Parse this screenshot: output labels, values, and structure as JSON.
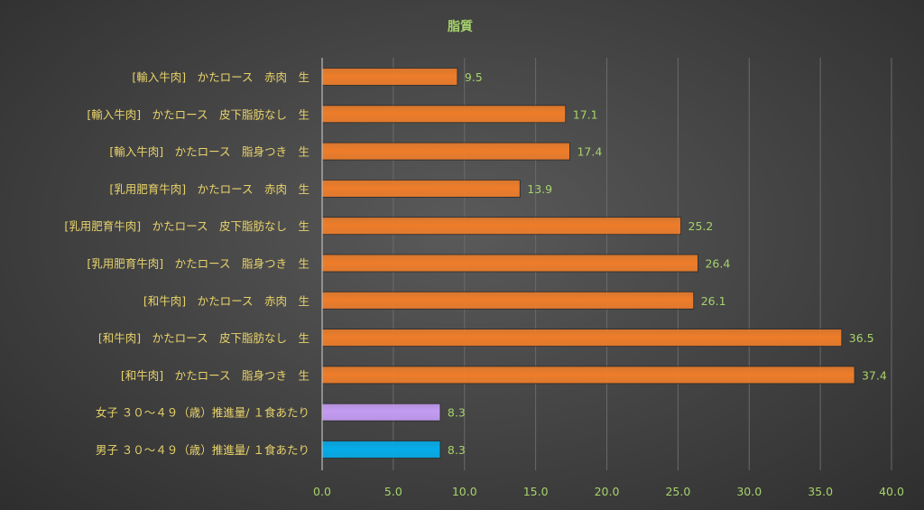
{
  "chart_data": {
    "type": "bar",
    "orientation": "horizontal",
    "title": "脂質",
    "xlabel": "",
    "ylabel": "",
    "xlim": [
      0,
      40
    ],
    "x_ticks": [
      "0.0",
      "5.0",
      "10.0",
      "15.0",
      "20.0",
      "25.0",
      "30.0",
      "35.0",
      "40.0"
    ],
    "grid": true,
    "legend": "none",
    "categories": [
      "[輸入牛肉]　かたロース　赤肉　生",
      "[輸入牛肉]　かたロース　皮下脂肪なし　生",
      "[輸入牛肉]　かたロース　脂身つき　生",
      "[乳用肥育牛肉]　かたロース　赤肉　生",
      "[乳用肥育牛肉]　かたロース　皮下脂肪なし　生",
      "[乳用肥育牛肉]　かたロース　脂身つき　生",
      "[和牛肉]　かたロース　赤肉　生",
      "[和牛肉]　かたロース　皮下脂肪なし　生",
      "[和牛肉]　かたロース　脂身つき　生",
      "女子 ３０～４９（歳）推進量/ １食あたり",
      "男子 ３０～４９（歳）推進量/ １食あたり"
    ],
    "values": [
      9.5,
      17.1,
      17.4,
      13.9,
      25.2,
      26.4,
      26.1,
      36.5,
      37.4,
      8.3,
      8.3
    ],
    "value_labels": [
      "9.5",
      "17.1",
      "17.4",
      "13.9",
      "25.2",
      "26.4",
      "26.1",
      "36.5",
      "37.4",
      "8.3",
      "8.3"
    ],
    "colors": [
      "#ee7d2a",
      "#ee7d2a",
      "#ee7d2a",
      "#ee7d2a",
      "#ee7d2a",
      "#ee7d2a",
      "#ee7d2a",
      "#ee7d2a",
      "#ee7d2a",
      "#c49cf3",
      "#05adea"
    ]
  }
}
